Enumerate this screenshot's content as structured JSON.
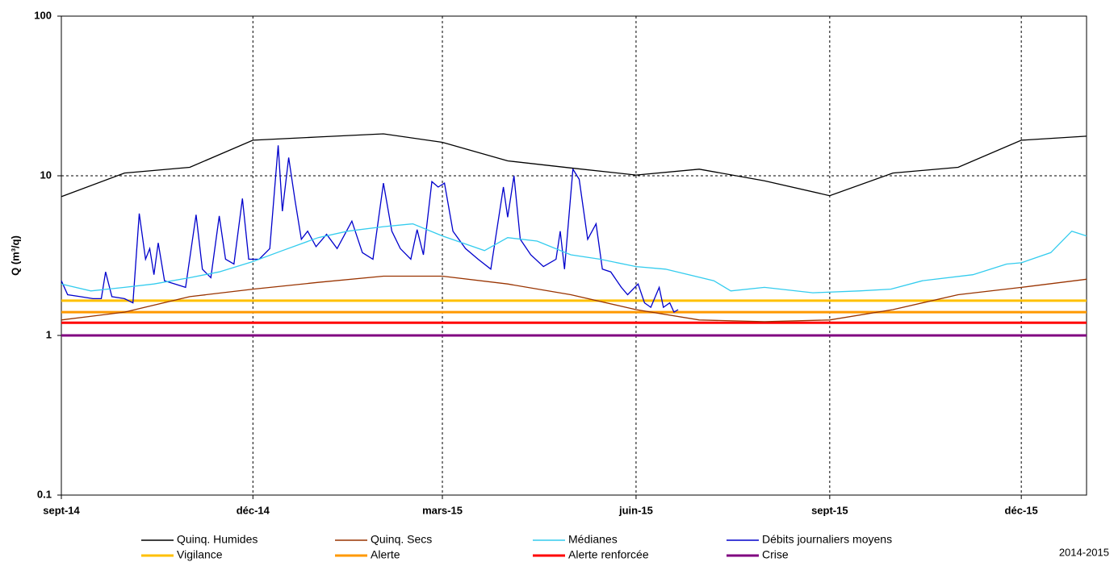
{
  "chart_data": {
    "type": "line",
    "y_label": "Q (m³/q)",
    "annotation": "2014-2015",
    "log_y": true,
    "grid": true,
    "xlim": [
      "2014-09-01",
      "2016-01-01"
    ],
    "xticks": [
      {
        "value": "2014-09-01",
        "label": "sept-14"
      },
      {
        "value": "2014-12-01",
        "label": "déc-14"
      },
      {
        "value": "2015-03-01",
        "label": "mars-15"
      },
      {
        "value": "2015-06-01",
        "label": "juin-15"
      },
      {
        "value": "2015-09-01",
        "label": "sept-15"
      },
      {
        "value": "2015-12-01",
        "label": "déc-15"
      }
    ],
    "ylim": [
      0.1,
      100
    ],
    "yticks": [
      0.1,
      1,
      10,
      100
    ],
    "series": [
      {
        "name": "Quinq. Humides",
        "color": "#000000",
        "x": [
          "2014-09-01",
          "2014-10-01",
          "2014-11-01",
          "2014-12-01",
          "2015-01-01",
          "2015-02-01",
          "2015-03-01",
          "2015-04-01",
          "2015-05-01",
          "2015-06-01",
          "2015-07-01",
          "2015-08-01",
          "2015-09-01",
          "2015-10-01",
          "2015-11-01",
          "2015-12-01",
          "2016-01-01"
        ],
        "values": [
          7.4,
          10.4,
          11.3,
          16.7,
          17.5,
          18.3,
          16.2,
          12.4,
          11.2,
          10.1,
          11.0,
          9.3,
          7.5,
          10.4,
          11.3,
          16.7,
          17.7
        ]
      },
      {
        "name": "Quinq. Secs",
        "color": "#993300",
        "x": [
          "2014-09-01",
          "2014-10-01",
          "2014-11-01",
          "2014-12-01",
          "2015-01-01",
          "2015-02-01",
          "2015-03-01",
          "2015-04-01",
          "2015-05-01",
          "2015-06-01",
          "2015-07-01",
          "2015-08-01",
          "2015-09-01",
          "2015-10-01",
          "2015-11-01",
          "2015-12-01",
          "2016-01-01"
        ],
        "values": [
          1.25,
          1.4,
          1.75,
          1.95,
          2.15,
          2.35,
          2.35,
          2.1,
          1.8,
          1.45,
          1.25,
          1.22,
          1.25,
          1.45,
          1.8,
          2.0,
          2.25
        ]
      },
      {
        "name": "Médianes",
        "color": "#33CCEE",
        "x": [
          "2014-09-01",
          "2014-09-15",
          "2014-10-01",
          "2014-10-15",
          "2014-11-01",
          "2014-11-15",
          "2014-12-01",
          "2014-12-15",
          "2015-01-01",
          "2015-01-15",
          "2015-02-01",
          "2015-02-15",
          "2015-03-01",
          "2015-03-21",
          "2015-04-01",
          "2015-04-15",
          "2015-05-01",
          "2015-05-15",
          "2015-06-01",
          "2015-06-15",
          "2015-07-08",
          "2015-07-16",
          "2015-08-01",
          "2015-08-24",
          "2015-09-15",
          "2015-09-30",
          "2015-10-15",
          "2015-11-08",
          "2015-11-24",
          "2015-12-01",
          "2015-12-15",
          "2015-12-25",
          "2016-01-01"
        ],
        "values": [
          2.1,
          1.9,
          2.0,
          2.1,
          2.3,
          2.5,
          2.9,
          3.4,
          4.1,
          4.5,
          4.8,
          5.0,
          4.2,
          3.4,
          4.1,
          3.9,
          3.2,
          3.0,
          2.7,
          2.6,
          2.2,
          1.9,
          2.0,
          1.85,
          1.9,
          1.95,
          2.2,
          2.4,
          2.8,
          2.85,
          3.3,
          4.5,
          4.2
        ]
      },
      {
        "name": "Débits journaliers moyens",
        "color": "#0000CC",
        "x": [
          "2014-09-01",
          "2014-09-04",
          "2014-09-10",
          "2014-09-16",
          "2014-09-20",
          "2014-09-22",
          "2014-09-25",
          "2014-10-01",
          "2014-10-05",
          "2014-10-08",
          "2014-10-11",
          "2014-10-13",
          "2014-10-15",
          "2014-10-17",
          "2014-10-20",
          "2014-10-25",
          "2014-10-30",
          "2014-11-04",
          "2014-11-07",
          "2014-11-11",
          "2014-11-15",
          "2014-11-18",
          "2014-11-22",
          "2014-11-26",
          "2014-11-29",
          "2014-12-04",
          "2014-12-09",
          "2014-12-13",
          "2014-12-15",
          "2014-12-18",
          "2014-12-21",
          "2014-12-24",
          "2014-12-27",
          "2014-12-31",
          "2015-01-05",
          "2015-01-10",
          "2015-01-17",
          "2015-01-22",
          "2015-01-27",
          "2015-02-01",
          "2015-02-05",
          "2015-02-09",
          "2015-02-14",
          "2015-02-17",
          "2015-02-20",
          "2015-02-24",
          "2015-02-27",
          "2015-03-02",
          "2015-03-06",
          "2015-03-12",
          "2015-03-18",
          "2015-03-24",
          "2015-03-30",
          "2015-04-01",
          "2015-04-04",
          "2015-04-07",
          "2015-04-12",
          "2015-04-18",
          "2015-04-24",
          "2015-04-26",
          "2015-04-28",
          "2015-05-02",
          "2015-05-05",
          "2015-05-09",
          "2015-05-13",
          "2015-05-16",
          "2015-05-20",
          "2015-05-25",
          "2015-05-28",
          "2015-06-02",
          "2015-06-05",
          "2015-06-08",
          "2015-06-12",
          "2015-06-14",
          "2015-06-17",
          "2015-06-19",
          "2015-06-21"
        ],
        "values": [
          2.2,
          1.8,
          1.75,
          1.7,
          1.7,
          2.5,
          1.75,
          1.7,
          1.6,
          5.8,
          3.0,
          3.5,
          2.4,
          3.8,
          2.2,
          2.1,
          2.0,
          5.7,
          2.6,
          2.3,
          5.6,
          3.0,
          2.8,
          7.2,
          3.0,
          3.0,
          3.5,
          15.5,
          6.0,
          13.0,
          7.0,
          4.0,
          4.5,
          3.6,
          4.3,
          3.5,
          5.2,
          3.3,
          3.0,
          9.0,
          4.5,
          3.5,
          3.0,
          4.6,
          3.2,
          9.2,
          8.5,
          9.0,
          4.5,
          3.5,
          3.0,
          2.6,
          8.5,
          5.5,
          10.0,
          4.0,
          3.2,
          2.7,
          3.0,
          4.5,
          2.6,
          11.0,
          9.5,
          4.0,
          5.0,
          2.6,
          2.5,
          2.0,
          1.8,
          2.1,
          1.6,
          1.5,
          2.0,
          1.5,
          1.6,
          1.4,
          1.45
        ]
      },
      {
        "name": "Vigilance",
        "color": "#FFC000",
        "x": [
          "2014-09-01",
          "2016-01-01"
        ],
        "values": [
          1.65,
          1.65
        ]
      },
      {
        "name": "Alerte",
        "color": "#FF9900",
        "x": [
          "2014-09-01",
          "2016-01-01"
        ],
        "values": [
          1.4,
          1.4
        ]
      },
      {
        "name": "Alerte renforcée",
        "color": "#FF0000",
        "x": [
          "2014-09-01",
          "2016-01-01"
        ],
        "values": [
          1.2,
          1.2
        ]
      },
      {
        "name": "Crise",
        "color": "#800080",
        "x": [
          "2014-09-01",
          "2016-01-01"
        ],
        "values": [
          1.0,
          1.0
        ]
      }
    ]
  }
}
